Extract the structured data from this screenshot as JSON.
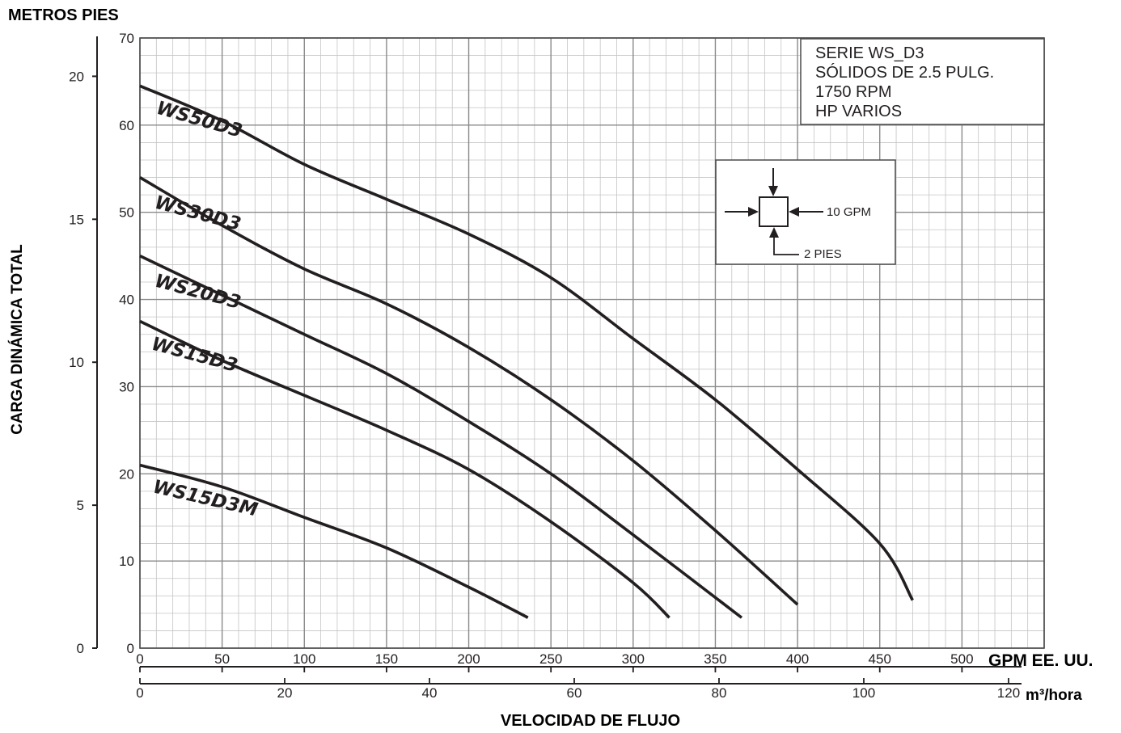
{
  "chart_data": {
    "type": "line",
    "y_units_label": "METROS PIES",
    "ylabel": "CARGA DINÁMICA TOTAL",
    "xlabel": "VELOCIDAD DE FLUJO",
    "x_gpm_label": "GPM EE. UU.",
    "x_m3_label": "m³/hora",
    "xlim_gpm": [
      0,
      550
    ],
    "ylim_ft": [
      0,
      70
    ],
    "ylim_m": [
      0,
      21.34
    ],
    "x_gpm_ticks": [
      "0",
      "50",
      "100",
      "150",
      "200",
      "250",
      "300",
      "350",
      "400",
      "450",
      "500"
    ],
    "x_m3_ticks": [
      "0",
      "20",
      "40",
      "60",
      "80",
      "100",
      "120"
    ],
    "y_ft_ticks": [
      "0",
      "10",
      "20",
      "30",
      "40",
      "50",
      "60",
      "70"
    ],
    "y_m_ticks": [
      "0",
      "5",
      "10",
      "15",
      "20"
    ],
    "grid": true,
    "info_box": [
      "SERIE WS_D3",
      "SÓLIDOS DE 2.5 PULG.",
      "1750 RPM",
      "HP VARIOS"
    ],
    "grid_legend": {
      "horizontal": "10 GPM",
      "vertical": "2 PIES"
    },
    "series": [
      {
        "name": "WS50D3",
        "x": [
          0,
          50,
          100,
          150,
          200,
          250,
          300,
          350,
          400,
          450,
          470
        ],
        "y": [
          64.5,
          60.5,
          55.5,
          51.5,
          47.5,
          42.5,
          35.5,
          28.5,
          20.5,
          12.0,
          5.5
        ]
      },
      {
        "name": "WS30D3",
        "x": [
          0,
          50,
          100,
          150,
          200,
          250,
          300,
          350,
          400
        ],
        "y": [
          54.0,
          48.5,
          43.5,
          39.5,
          34.5,
          28.5,
          21.5,
          13.5,
          5.0
        ]
      },
      {
        "name": "WS20D3",
        "x": [
          0,
          50,
          100,
          150,
          200,
          250,
          300,
          366
        ],
        "y": [
          45.0,
          40.5,
          36.0,
          31.5,
          26.0,
          20.0,
          13.0,
          3.5
        ]
      },
      {
        "name": "WS15D3",
        "x": [
          0,
          50,
          100,
          150,
          200,
          250,
          300,
          322
        ],
        "y": [
          37.5,
          33.0,
          29.0,
          25.0,
          20.5,
          14.5,
          7.5,
          3.5
        ]
      },
      {
        "name": "WS15D3M",
        "x": [
          0,
          50,
          100,
          150,
          200,
          236
        ],
        "y": [
          21.0,
          18.5,
          15.0,
          11.5,
          7.0,
          3.5
        ]
      }
    ]
  }
}
